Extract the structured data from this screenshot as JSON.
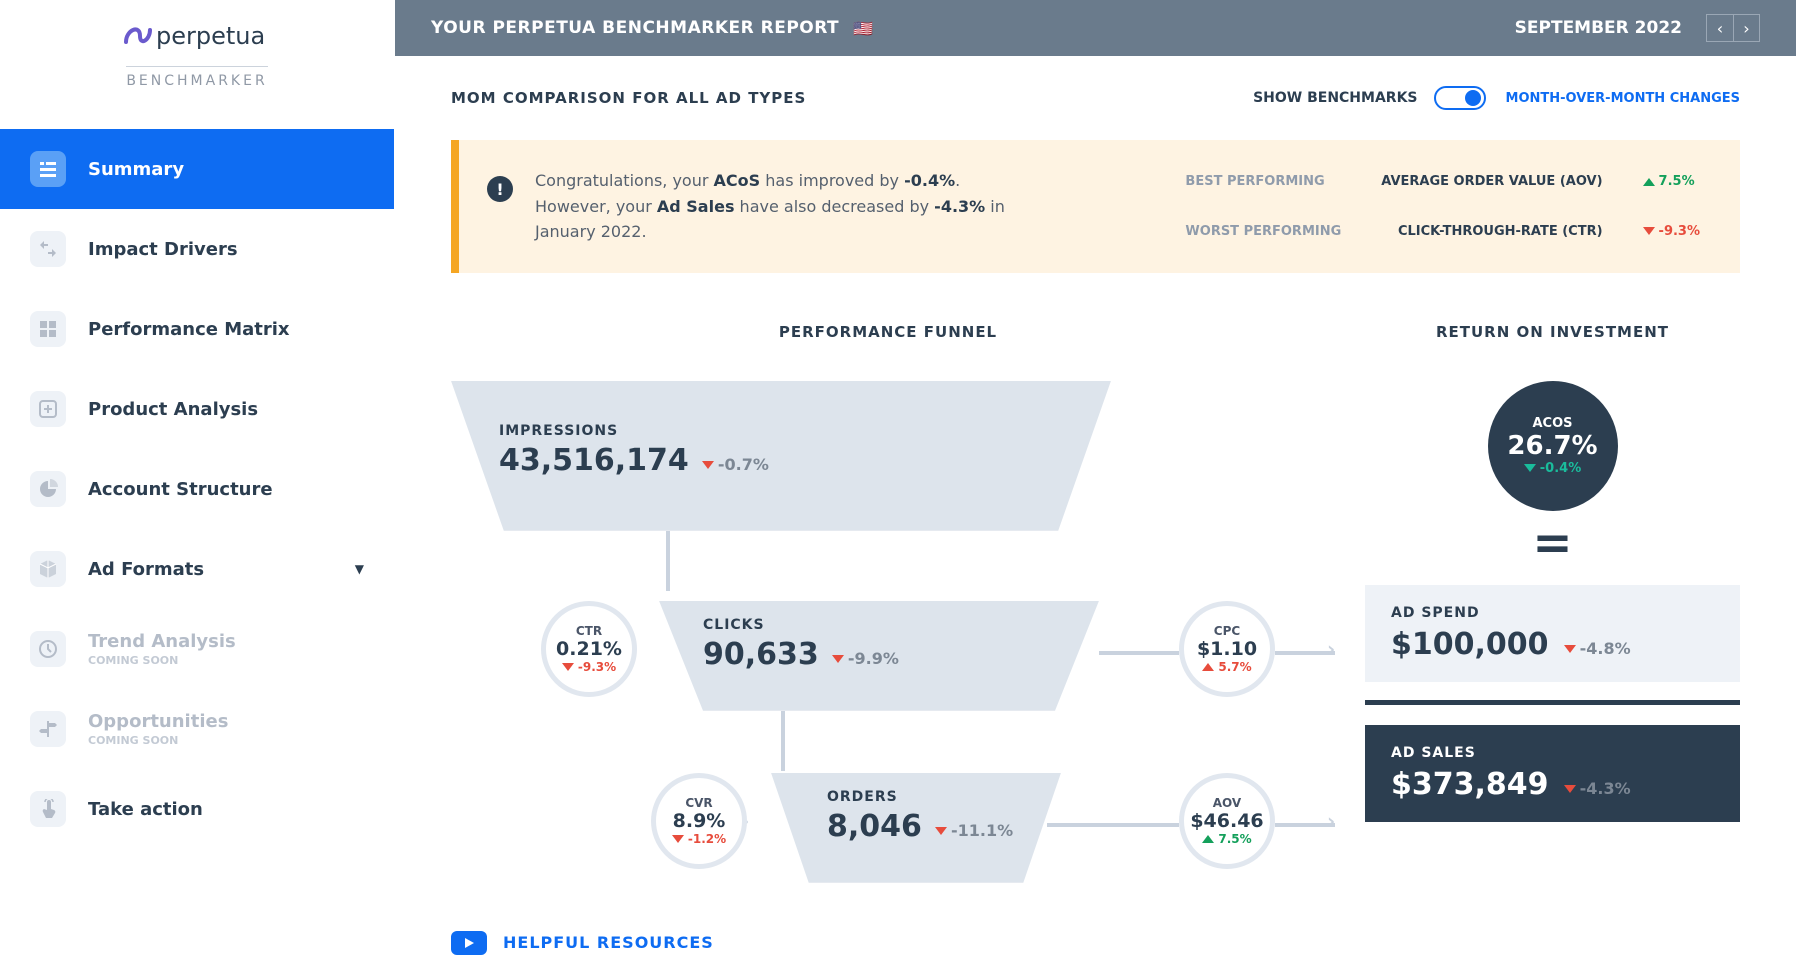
{
  "brand": {
    "name": "perpetua",
    "sub": "BENCHMARKER"
  },
  "nav": [
    {
      "label": "Summary",
      "icon": "list",
      "active": true
    },
    {
      "label": "Impact Drivers",
      "icon": "arrows"
    },
    {
      "label": "Performance Matrix",
      "icon": "matrix"
    },
    {
      "label": "Product Analysis",
      "icon": "plus"
    },
    {
      "label": "Account Structure",
      "icon": "pie"
    },
    {
      "label": "Ad Formats",
      "icon": "box",
      "expand": true
    },
    {
      "label": "Trend Analysis",
      "icon": "clock",
      "disabled": true,
      "sub": "COMING SOON"
    },
    {
      "label": "Opportunities",
      "icon": "sign",
      "disabled": true,
      "sub": "COMING SOON"
    },
    {
      "label": "Take action",
      "icon": "tap"
    }
  ],
  "top": {
    "title": "YOUR PERPETUA BENCHMARKER REPORT",
    "date": "SEPTEMBER 2022",
    "flag": "🇺🇸"
  },
  "subhead": {
    "title": "MOM COMPARISON FOR ALL AD TYPES",
    "show": "SHOW BENCHMARKS",
    "mom": "MONTH-OVER-MONTH CHANGES"
  },
  "banner": {
    "msg_pre": "Congratulations, your ",
    "k1": "ACoS",
    "m2": " has improved by ",
    "v1": "-0.4%",
    "m3": ". However, your ",
    "k2": "Ad Sales",
    "m4": " have also decreased by ",
    "v2": "-4.3%",
    "m5": " in January 2022.",
    "best_lbl": "BEST PERFORMING",
    "best_name": "AVERAGE ORDER VALUE (AOV)",
    "best_delta": "7.5%",
    "best_dir": "up",
    "worst_lbl": "WORST PERFORMING",
    "worst_name": "CLICK-THROUGH-RATE (CTR)",
    "worst_delta": "-9.3%",
    "worst_dir": "down"
  },
  "sec": {
    "funnel": "PERFORMANCE FUNNEL",
    "roi": "RETURN ON INVESTMENT"
  },
  "funnel": {
    "impressions": {
      "name": "IMPRESSIONS",
      "value": "43,516,174",
      "delta": "-0.7%",
      "dir": "down"
    },
    "clicks": {
      "name": "CLICKS",
      "value": "90,633",
      "delta": "-9.9%",
      "dir": "down"
    },
    "orders": {
      "name": "ORDERS",
      "value": "8,046",
      "delta": "-11.1%",
      "dir": "down"
    },
    "ctr": {
      "name": "CTR",
      "value": "0.21%",
      "delta": "-9.3%",
      "dir": "down"
    },
    "cvr": {
      "name": "CVR",
      "value": "8.9%",
      "delta": "-1.2%",
      "dir": "down"
    },
    "cpc": {
      "name": "CPC",
      "value": "$1.10",
      "delta": "5.7%",
      "dir": "up-red"
    },
    "aov": {
      "name": "AOV",
      "value": "$46.46",
      "delta": "7.5%",
      "dir": "up"
    }
  },
  "roi": {
    "acos": {
      "name": "ACOS",
      "value": "26.7%",
      "delta": "-0.4%"
    },
    "spend": {
      "name": "AD SPEND",
      "value": "$100,000",
      "delta": "-4.8%",
      "dir": "down"
    },
    "sales": {
      "name": "AD SALES",
      "value": "$373,849",
      "delta": "-4.3%",
      "dir": "down"
    }
  },
  "helpful": "HELPFUL RESOURCES",
  "colors": {
    "accent": "#0e6cf2",
    "bar": "#6a7b8c",
    "banner_bg": "#fef3e2",
    "banner_border": "#f5a623",
    "dark": "#2c3e50",
    "light": "#dde4ec",
    "green": "#14a05b",
    "red": "#e74c3c",
    "teal": "#1abc9c",
    "grey": "#7c8794"
  }
}
